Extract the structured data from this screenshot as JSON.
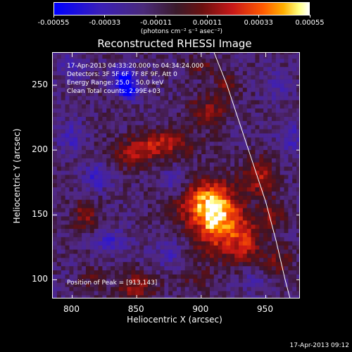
{
  "colorbar": {
    "ticks": [
      "-0.00055",
      "-0.00033",
      "-0.00011",
      "0.00011",
      "0.00033",
      "0.00055"
    ],
    "units": "(photons cm⁻² s⁻¹ asec⁻²)"
  },
  "title": "Reconstructed RHESSI Image",
  "info": {
    "line1": "17-Apr-2013 04:33:20.000 to 04:34:24.000",
    "line2": "Detectors: 3F 5F 6F 7F 8F 9F, Att 0",
    "line3": "Energy Range: 25.0 - 50.0 keV",
    "line4": "Clean     Total counts: 2.99E+03"
  },
  "peak": "Position of Peak = [913,143]",
  "footer": "17-Apr-2013 09:12",
  "chart_data": {
    "type": "heatmap",
    "title": "Reconstructed RHESSI Image",
    "xlabel": "Heliocentric X (arcsec)",
    "ylabel": "Heliocentric Y (arcsec)",
    "xlim": [
      785,
      977
    ],
    "ylim": [
      85,
      275
    ],
    "xticks": [
      800,
      850,
      900,
      950
    ],
    "yticks": [
      100,
      150,
      200,
      250
    ],
    "colorbar_range": [
      -0.00055,
      0.00055
    ],
    "peak_position": [
      913,
      143
    ],
    "limb": [
      [
        910,
        275
      ],
      [
        920,
        250
      ],
      [
        930,
        220
      ],
      [
        940,
        190
      ],
      [
        950,
        160
      ],
      [
        958,
        130
      ],
      [
        965,
        100
      ],
      [
        969,
        85
      ]
    ]
  }
}
